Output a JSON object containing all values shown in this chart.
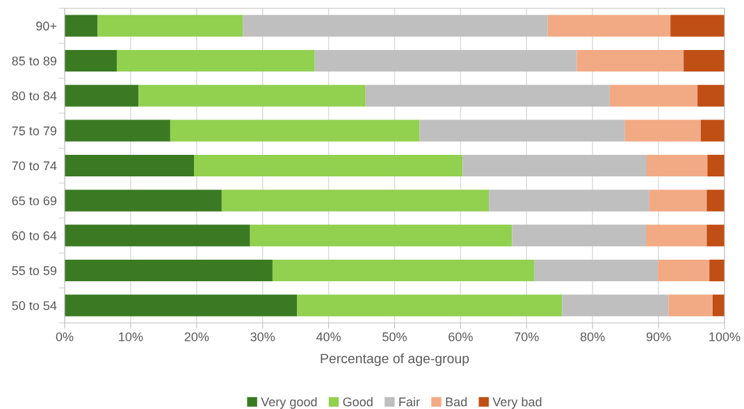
{
  "chart_data": {
    "type": "bar",
    "orientation": "horizontal",
    "stacked": true,
    "xlabel": "Percentage of age-group",
    "categories": [
      "90+",
      "85 to 89",
      "80 to 84",
      "75 to 79",
      "70 to 74",
      "65 to 69",
      "60 to 64",
      "55 to 59",
      "50 to 54"
    ],
    "series": [
      {
        "name": "Very good",
        "color": "#3b7a23",
        "values": [
          5.0,
          7.9,
          11.2,
          16.0,
          19.6,
          23.8,
          28.1,
          31.5,
          35.2
        ]
      },
      {
        "name": "Good",
        "color": "#92d050",
        "values": [
          22.0,
          30.0,
          34.4,
          37.8,
          40.7,
          40.5,
          39.7,
          39.7,
          40.2
        ]
      },
      {
        "name": "Fair",
        "color": "#bfbfbf",
        "values": [
          46.2,
          39.7,
          37.0,
          31.1,
          27.9,
          24.3,
          20.3,
          18.7,
          16.1
        ]
      },
      {
        "name": "Bad",
        "color": "#f2aa84",
        "values": [
          18.6,
          16.2,
          13.3,
          11.5,
          9.2,
          8.7,
          9.2,
          7.8,
          6.7
        ]
      },
      {
        "name": "Very bad",
        "color": "#c04f15",
        "values": [
          8.2,
          6.2,
          4.1,
          3.6,
          2.6,
          2.7,
          2.7,
          2.3,
          1.8
        ]
      }
    ],
    "xlim": [
      0,
      100
    ],
    "xticks": [
      {
        "value": 0,
        "label": "0%"
      },
      {
        "value": 10,
        "label": "10%"
      },
      {
        "value": 20,
        "label": "20%"
      },
      {
        "value": 30,
        "label": "30%"
      },
      {
        "value": 40,
        "label": "40%"
      },
      {
        "value": 50,
        "label": "50%"
      },
      {
        "value": 60,
        "label": "60%"
      },
      {
        "value": 70,
        "label": "70%"
      },
      {
        "value": 80,
        "label": "80%"
      },
      {
        "value": 90,
        "label": "90%"
      },
      {
        "value": 100,
        "label": "100%"
      }
    ],
    "grid": "x",
    "legend": "bottom"
  }
}
